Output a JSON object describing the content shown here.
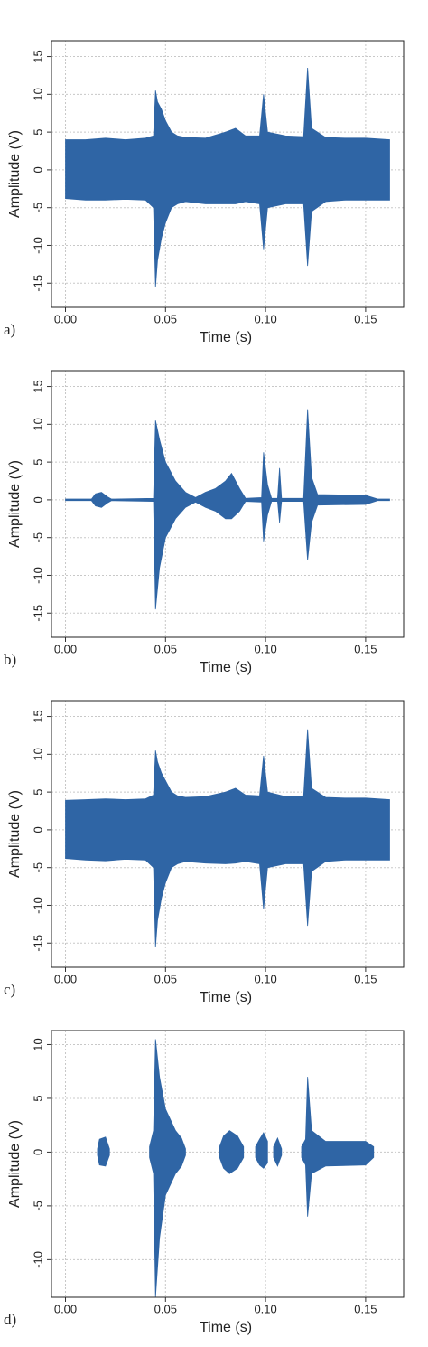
{
  "chart_data": [
    {
      "type": "envelope",
      "panel_label": "a)",
      "xlabel": "Time (s)",
      "ylabel": "Amplitude (V)",
      "color": "#2f65a5",
      "grid": true,
      "xlim": [
        -0.007,
        0.169
      ],
      "ylim": [
        -18.2,
        17.1
      ],
      "xticks": [
        {
          "value": 0,
          "label": "0.00"
        },
        0.05,
        {
          "value": 0.1,
          "label": "0.10"
        },
        0.15
      ],
      "yticks": [
        -15,
        -10,
        -5,
        0,
        5,
        10,
        15
      ],
      "x": [
        0,
        0.01,
        0.02,
        0.03,
        0.04,
        0.044,
        0.045,
        0.046,
        0.048,
        0.05,
        0.053,
        0.056,
        0.06,
        0.07,
        0.08,
        0.085,
        0.09,
        0.097,
        0.099,
        0.101,
        0.11,
        0.119,
        0.121,
        0.123,
        0.13,
        0.14,
        0.15,
        0.162
      ],
      "values": [
        4,
        4,
        4.2,
        4,
        4.2,
        4.5,
        10.5,
        9,
        8,
        6.5,
        5,
        4.5,
        4.3,
        4.2,
        5,
        5.5,
        4.5,
        4.5,
        10,
        5,
        4.5,
        4.4,
        13.5,
        5.5,
        4.3,
        4.2,
        4.2,
        4
      ],
      "values_low": [
        -3.8,
        -4,
        -4,
        -3.9,
        -4,
        -5,
        -15.5,
        -12,
        -9,
        -7,
        -5,
        -4.5,
        -4.2,
        -4.5,
        -4.5,
        -4.5,
        -4.2,
        -4.5,
        -10.5,
        -5,
        -4.5,
        -4.5,
        -12.7,
        -5.5,
        -4.2,
        -4,
        -4,
        -4
      ]
    },
    {
      "type": "envelope",
      "panel_label": "b)",
      "xlabel": "Time (s)",
      "ylabel": "Amplitude (V)",
      "color": "#2f65a5",
      "grid": true,
      "xlim": [
        -0.007,
        0.169
      ],
      "ylim": [
        -18.2,
        17.1
      ],
      "xticks": [
        {
          "value": 0,
          "label": "0.00"
        },
        0.05,
        {
          "value": 0.1,
          "label": "0.10"
        },
        0.15
      ],
      "yticks": [
        -15,
        -10,
        -5,
        0,
        5,
        10,
        15
      ],
      "x": [
        0,
        0.013,
        0.015,
        0.018,
        0.021,
        0.023,
        0.044,
        0.045,
        0.047,
        0.05,
        0.055,
        0.06,
        0.065,
        0.07,
        0.075,
        0.08,
        0.083,
        0.087,
        0.09,
        0.098,
        0.099,
        0.101,
        0.103,
        0.106,
        0.107,
        0.108,
        0.119,
        0.121,
        0.123,
        0.126,
        0.15,
        0.156,
        0.162
      ],
      "values": [
        0.1,
        0.1,
        0.8,
        1,
        0.4,
        0.1,
        0.2,
        10.5,
        8,
        5,
        2.5,
        1,
        0.3,
        1,
        1.5,
        2.5,
        3.5,
        1.5,
        0.2,
        0.3,
        6.3,
        2,
        0.2,
        0.2,
        4.2,
        0.2,
        0.2,
        12,
        3,
        0.7,
        0.6,
        0.1,
        0.1
      ],
      "values_low": [
        -0.1,
        -0.1,
        -0.8,
        -1,
        -0.4,
        -0.1,
        -0.2,
        -14.5,
        -9,
        -5,
        -2.5,
        -1,
        -0.3,
        -1,
        -1.5,
        -2.5,
        -2.5,
        -1.5,
        -0.2,
        -0.3,
        -5.5,
        -2,
        -0.2,
        -0.2,
        -3,
        -0.2,
        -0.2,
        -8,
        -3,
        -0.7,
        -0.6,
        -0.1,
        -0.1
      ]
    },
    {
      "type": "envelope",
      "panel_label": "c)",
      "xlabel": "Time (s)",
      "ylabel": "Amplitude (V)",
      "color": "#2f65a5",
      "grid": true,
      "xlim": [
        -0.007,
        0.169
      ],
      "ylim": [
        -18.2,
        17.1
      ],
      "xticks": [
        {
          "value": 0,
          "label": "0.00"
        },
        0.05,
        {
          "value": 0.1,
          "label": "0.10"
        },
        0.15
      ],
      "yticks": [
        -15,
        -10,
        -5,
        0,
        5,
        10,
        15
      ],
      "x": [
        0,
        0.01,
        0.02,
        0.03,
        0.04,
        0.044,
        0.045,
        0.046,
        0.048,
        0.05,
        0.053,
        0.056,
        0.06,
        0.07,
        0.08,
        0.085,
        0.09,
        0.097,
        0.099,
        0.101,
        0.11,
        0.119,
        0.121,
        0.123,
        0.13,
        0.14,
        0.15,
        0.162
      ],
      "values": [
        3.9,
        4,
        4.1,
        4,
        4.1,
        4.6,
        10.5,
        9,
        7.5,
        6.5,
        5,
        4.5,
        4.3,
        4.4,
        5,
        5.5,
        4.6,
        4.5,
        9.8,
        5,
        4.4,
        4.4,
        13.3,
        5.5,
        4.3,
        4.2,
        4.2,
        4
      ],
      "values_low": [
        -3.8,
        -4,
        -4.1,
        -3.9,
        -4,
        -5,
        -15.5,
        -12,
        -9,
        -7,
        -5,
        -4.5,
        -4.2,
        -4.4,
        -4.5,
        -4.4,
        -4.2,
        -4.5,
        -10.5,
        -5,
        -4.5,
        -4.5,
        -12.7,
        -5.5,
        -4.2,
        -4,
        -4,
        -4
      ]
    },
    {
      "type": "envelope",
      "panel_label": "d)",
      "xlabel": "Time (s)",
      "ylabel": "Amplitude (V)",
      "color": "#2f65a5",
      "grid": true,
      "xlim": [
        -0.007,
        0.169
      ],
      "ylim": [
        -13.5,
        11.3
      ],
      "xticks": [
        {
          "value": 0,
          "label": "0.00"
        },
        0.05,
        {
          "value": 0.1,
          "label": "0.10"
        },
        0.15
      ],
      "yticks": [
        -10,
        -5,
        0,
        5,
        10
      ],
      "x": [
        0.016,
        0.017,
        0.02,
        0.022,
        null,
        0.042,
        0.044,
        0.045,
        0.047,
        0.05,
        0.055,
        0.058,
        0.06,
        null,
        0.077,
        0.079,
        0.082,
        0.086,
        0.089,
        null,
        0.095,
        0.097,
        0.099,
        0.101,
        null,
        0.104,
        0.106,
        0.108,
        null,
        0.118,
        0.12,
        0.121,
        0.123,
        0.13,
        0.15,
        0.154
      ],
      "values": [
        0.3,
        1.2,
        1.4,
        0.3,
        null,
        0.5,
        2,
        10.5,
        7,
        4,
        2,
        1.3,
        0.3,
        null,
        0.5,
        1.5,
        2,
        1.5,
        0.5,
        null,
        0.5,
        1.2,
        1.8,
        1,
        null,
        0.5,
        1.3,
        0.3,
        null,
        0.5,
        1.2,
        7,
        2,
        1,
        1,
        0.5
      ],
      "values_low": [
        -0.3,
        -1.2,
        -1.3,
        -0.3,
        null,
        -0.5,
        -2,
        -13.5,
        -8,
        -4,
        -2,
        -1.3,
        -0.3,
        null,
        -0.5,
        -1.5,
        -2,
        -1.5,
        -0.5,
        null,
        -0.5,
        -1.2,
        -1.5,
        -1,
        null,
        -0.5,
        -1.3,
        -0.3,
        null,
        -0.5,
        -1.2,
        -6,
        -2,
        -1.3,
        -1.2,
        -0.5
      ]
    }
  ]
}
